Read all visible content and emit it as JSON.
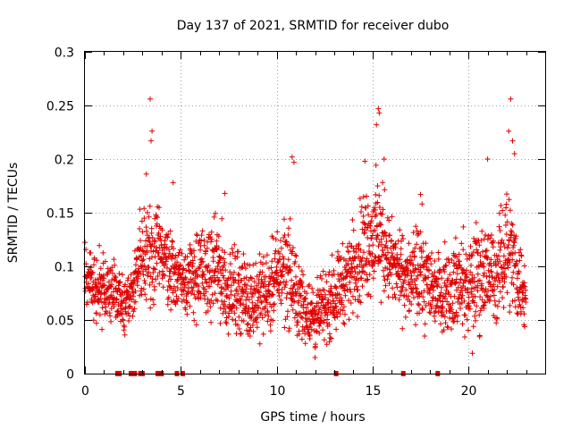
{
  "chart_data": {
    "type": "scatter",
    "title": "Day 137 of 2021, SRMTID for receiver dubo",
    "xlabel": "GPS time / hours",
    "ylabel": "SRMTID / TECUs",
    "xlim": [
      0,
      24
    ],
    "ylim": [
      0,
      0.3
    ],
    "xticks": [
      0,
      5,
      10,
      15,
      20
    ],
    "yticks": [
      0,
      0.05,
      0.1,
      0.15,
      0.2,
      0.25,
      0.3
    ],
    "xtick_labels": [
      "0",
      "5",
      "10",
      "15",
      "20"
    ],
    "ytick_labels": [
      "0",
      "0.05",
      "0.1",
      "0.15",
      "0.2",
      "0.25",
      "0.3"
    ],
    "grid": true,
    "marker": "+",
    "series_color": "#e00000",
    "gap_marker_color": "#e00000",
    "gap_markers_x": [
      1.7,
      1.8,
      2.4,
      2.6,
      2.9,
      3.0,
      3.8,
      3.9,
      4.0,
      4.8,
      5.1,
      13.1,
      16.6,
      18.4
    ],
    "envelope": {
      "x": [
        0,
        0.5,
        1,
        1.5,
        2,
        2.5,
        3,
        3.5,
        4,
        4.5,
        5,
        5.5,
        6,
        6.5,
        7,
        7.5,
        8,
        8.5,
        9,
        9.5,
        10,
        10.5,
        11,
        11.5,
        12,
        12.5,
        13,
        13.5,
        14,
        14.5,
        15,
        15.5,
        16,
        16.5,
        17,
        17.5,
        18,
        18.5,
        19,
        19.5,
        20,
        20.5,
        21,
        21.5,
        22,
        22.5,
        23
      ],
      "low": [
        0.05,
        0.04,
        0.04,
        0.035,
        0.03,
        0.045,
        0.05,
        0.06,
        0.06,
        0.055,
        0.05,
        0.04,
        0.04,
        0.045,
        0.035,
        0.03,
        0.03,
        0.025,
        0.025,
        0.03,
        0.04,
        0.035,
        0.025,
        0.02,
        0.015,
        0.02,
        0.03,
        0.04,
        0.05,
        0.055,
        0.06,
        0.06,
        0.055,
        0.045,
        0.04,
        0.03,
        0.035,
        0.035,
        0.03,
        0.03,
        0.025,
        0.03,
        0.035,
        0.04,
        0.05,
        0.04,
        0.03
      ],
      "high": [
        0.13,
        0.12,
        0.12,
        0.11,
        0.1,
        0.11,
        0.18,
        0.16,
        0.17,
        0.14,
        0.13,
        0.14,
        0.15,
        0.14,
        0.16,
        0.12,
        0.13,
        0.11,
        0.12,
        0.12,
        0.14,
        0.17,
        0.12,
        0.1,
        0.09,
        0.1,
        0.12,
        0.13,
        0.15,
        0.18,
        0.2,
        0.19,
        0.15,
        0.14,
        0.13,
        0.16,
        0.13,
        0.12,
        0.13,
        0.14,
        0.13,
        0.16,
        0.15,
        0.14,
        0.2,
        0.15,
        0.11
      ]
    },
    "spikes": [
      {
        "x": 3.4,
        "y": 0.256
      },
      {
        "x": 3.5,
        "y": 0.226
      },
      {
        "x": 3.45,
        "y": 0.217
      },
      {
        "x": 3.2,
        "y": 0.186
      },
      {
        "x": 10.8,
        "y": 0.202
      },
      {
        "x": 10.9,
        "y": 0.197
      },
      {
        "x": 15.3,
        "y": 0.247
      },
      {
        "x": 15.35,
        "y": 0.243
      },
      {
        "x": 15.2,
        "y": 0.232
      },
      {
        "x": 15.6,
        "y": 0.2
      },
      {
        "x": 21.0,
        "y": 0.2
      },
      {
        "x": 22.2,
        "y": 0.256
      },
      {
        "x": 22.1,
        "y": 0.226
      },
      {
        "x": 22.3,
        "y": 0.217
      },
      {
        "x": 22.4,
        "y": 0.205
      },
      {
        "x": 7.3,
        "y": 0.168
      },
      {
        "x": 4.6,
        "y": 0.178
      },
      {
        "x": 17.5,
        "y": 0.167
      },
      {
        "x": 14.6,
        "y": 0.198
      },
      {
        "x": 20.2,
        "y": 0.019
      },
      {
        "x": 12.0,
        "y": 0.015
      }
    ],
    "points_per_hour": 100
  }
}
